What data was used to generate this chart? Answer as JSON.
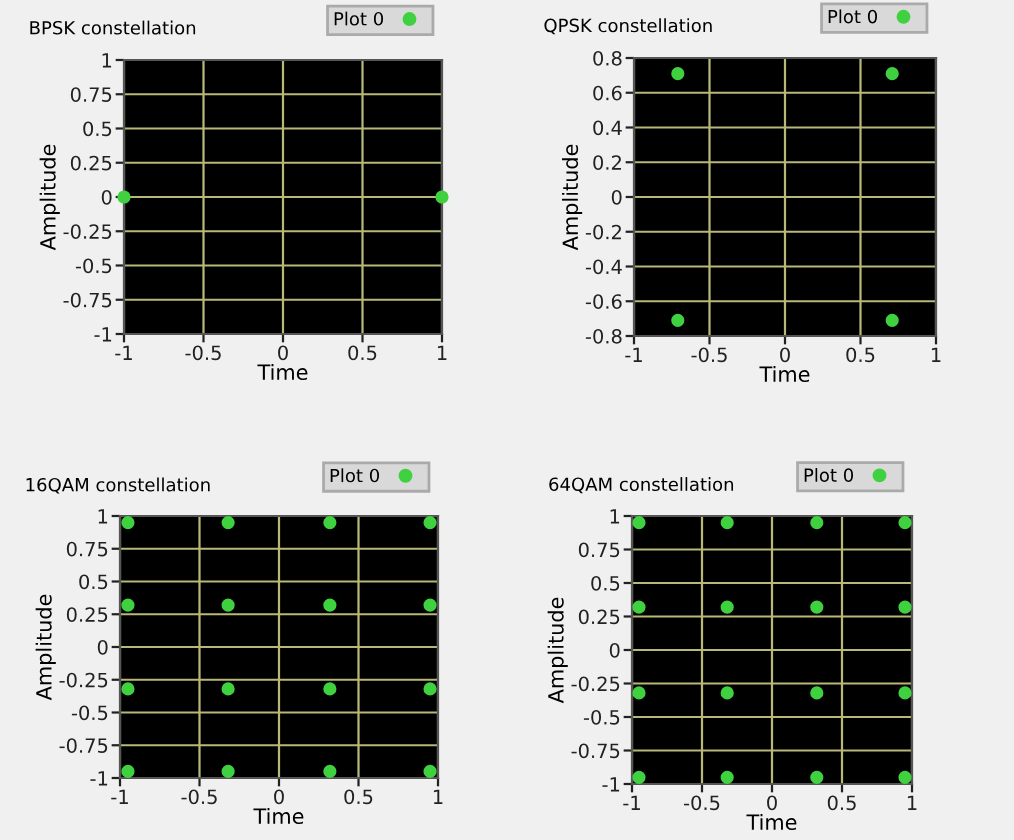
{
  "chart_data": [
    {
      "type": "scatter",
      "title": "BPSK constellation",
      "xlabel": "Time",
      "ylabel": "Amplitude",
      "xlim": [
        -1,
        1
      ],
      "ylim": [
        -1,
        1
      ],
      "xticks": [
        -1,
        -0.5,
        0,
        0.5,
        1
      ],
      "yticks": [
        -1,
        -0.75,
        -0.5,
        -0.25,
        0,
        0.25,
        0.5,
        0.75,
        1
      ],
      "grid": true,
      "legend": "top right",
      "marker": "circle",
      "series": [
        {
          "name": "Plot 0",
          "color": "#3fd13f",
          "x": [
            -1,
            1
          ],
          "values": [
            0,
            0
          ]
        }
      ]
    },
    {
      "type": "scatter",
      "title": "QPSK constellation",
      "xlabel": "Time",
      "ylabel": "Amplitude",
      "xlim": [
        -1,
        1
      ],
      "ylim": [
        -0.8,
        0.8
      ],
      "xticks": [
        -1,
        -0.5,
        0,
        0.5,
        1
      ],
      "yticks": [
        -0.8,
        -0.6,
        -0.4,
        -0.2,
        0,
        0.2,
        0.4,
        0.6,
        0.8
      ],
      "grid": true,
      "legend": "top right",
      "marker": "circle",
      "series": [
        {
          "name": "Plot 0",
          "color": "#3fd13f",
          "x": [
            -0.71,
            0.71,
            -0.71,
            0.71
          ],
          "values": [
            0.71,
            0.71,
            -0.71,
            -0.71
          ]
        }
      ]
    },
    {
      "type": "scatter",
      "title": "16QAM constellation",
      "xlabel": "Time",
      "ylabel": "Amplitude",
      "xlim": [
        -1,
        1
      ],
      "ylim": [
        -1,
        1
      ],
      "xticks": [
        -1,
        -0.5,
        0,
        0.5,
        1
      ],
      "yticks": [
        -1,
        -0.75,
        -0.5,
        -0.25,
        0,
        0.25,
        0.5,
        0.75,
        1
      ],
      "grid": true,
      "legend": "top right",
      "marker": "circle",
      "series": [
        {
          "name": "Plot 0",
          "color": "#3fd13f",
          "x": [
            -0.95,
            -0.32,
            0.32,
            0.95,
            -0.95,
            -0.32,
            0.32,
            0.95,
            -0.95,
            -0.32,
            0.32,
            0.95,
            -0.95,
            -0.32,
            0.32,
            0.95
          ],
          "values": [
            0.95,
            0.95,
            0.95,
            0.95,
            0.32,
            0.32,
            0.32,
            0.32,
            -0.32,
            -0.32,
            -0.32,
            -0.32,
            -0.95,
            -0.95,
            -0.95,
            -0.95
          ]
        }
      ]
    },
    {
      "type": "scatter",
      "title": "64QAM constellation",
      "xlabel": "Time",
      "ylabel": "Amplitude",
      "xlim": [
        -1,
        1
      ],
      "ylim": [
        -1,
        1
      ],
      "xticks": [
        -1,
        -0.5,
        0,
        0.5,
        1
      ],
      "yticks": [
        -1,
        -0.75,
        -0.5,
        -0.25,
        0,
        0.25,
        0.5,
        0.75,
        1
      ],
      "grid": true,
      "legend": "top right",
      "marker": "circle",
      "series": [
        {
          "name": "Plot 0",
          "color": "#3fd13f",
          "x": [
            -0.95,
            -0.32,
            0.32,
            0.95,
            -0.95,
            -0.32,
            0.32,
            0.95,
            -0.95,
            -0.32,
            0.32,
            0.95,
            -0.95,
            -0.32,
            0.32,
            0.95
          ],
          "values": [
            0.95,
            0.95,
            0.95,
            0.95,
            0.32,
            0.32,
            0.32,
            0.32,
            -0.32,
            -0.32,
            -0.32,
            -0.32,
            -0.95,
            -0.95,
            -0.95,
            -0.95
          ]
        }
      ]
    }
  ]
}
